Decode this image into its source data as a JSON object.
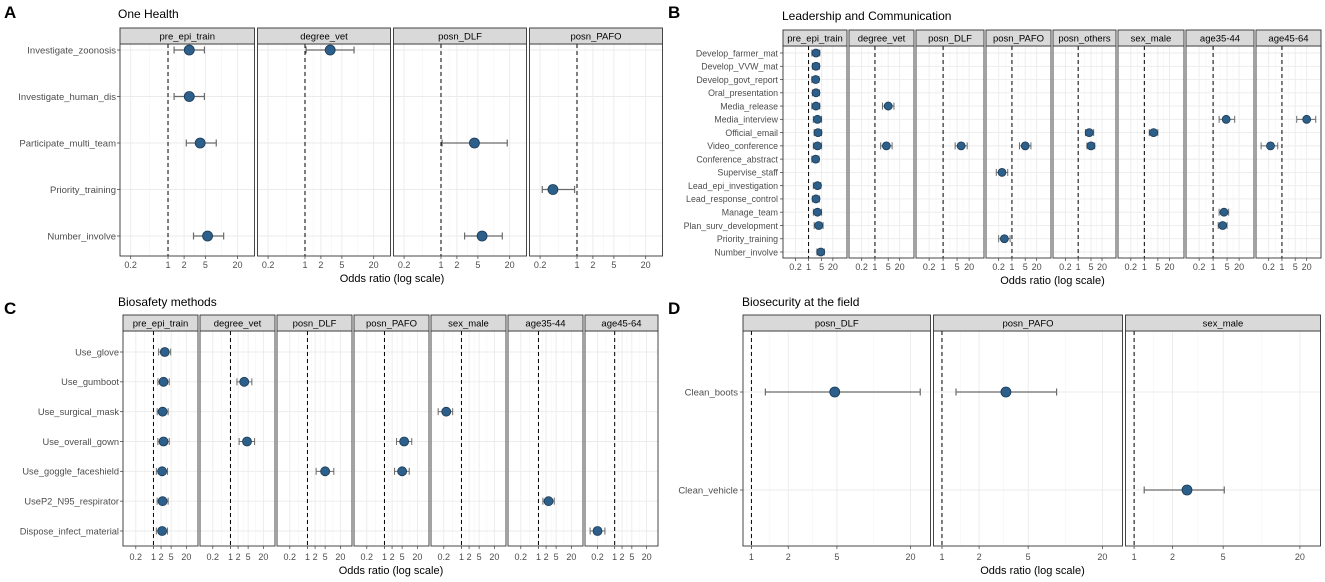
{
  "chart_data": [
    {
      "letter": "A",
      "title": "One Health",
      "type": "scatter",
      "xlabel": "Odds ratio (log scale)",
      "ylabel": "",
      "x_scale": "log",
      "xlim": [
        0.15,
        35
      ],
      "x_ticks": [
        0.2,
        1,
        2,
        5,
        20
      ],
      "x_tick_labels": [
        "0.2",
        "1",
        "2",
        "5",
        "20"
      ],
      "reference_line": 1,
      "facets": [
        "pre_epi_train",
        "degree_vet",
        "posn_DLF",
        "posn_PAFO"
      ],
      "categories": [
        "Investigate_zoonosis",
        "Investigate_human_dis",
        "Participate_multi_team",
        "Priority_training",
        "Number_involve"
      ],
      "points": [
        {
          "facet": "pre_epi_train",
          "category": "Investigate_zoonosis",
          "or": 2.5,
          "low": 1.3,
          "high": 4.8
        },
        {
          "facet": "pre_epi_train",
          "category": "Investigate_human_dis",
          "or": 2.5,
          "low": 1.3,
          "high": 4.8
        },
        {
          "facet": "pre_epi_train",
          "category": "Participate_multi_team",
          "or": 4.0,
          "low": 2.2,
          "high": 8.0
        },
        {
          "facet": "pre_epi_train",
          "category": "Number_involve",
          "or": 5.5,
          "low": 3.0,
          "high": 11.0
        },
        {
          "facet": "degree_vet",
          "category": "Investigate_zoonosis",
          "or": 3.0,
          "low": 1.05,
          "high": 8.5
        },
        {
          "facet": "posn_DLF",
          "category": "Participate_multi_team",
          "or": 4.3,
          "low": 1.05,
          "high": 18.0
        },
        {
          "facet": "posn_DLF",
          "category": "Number_involve",
          "or": 6.0,
          "low": 2.8,
          "high": 14.5
        },
        {
          "facet": "posn_PAFO",
          "category": "Priority_training",
          "or": 0.35,
          "low": 0.22,
          "high": 0.9
        }
      ]
    },
    {
      "letter": "B",
      "title": "Leadership and Communication",
      "type": "scatter",
      "xlabel": "Odds ratio (log scale)",
      "ylabel": "",
      "x_scale": "log",
      "xlim": [
        0.07,
        70
      ],
      "x_ticks": [
        0.2,
        1,
        5,
        20
      ],
      "x_tick_labels": [
        "0.2",
        "1",
        "5",
        "20"
      ],
      "reference_line": 1,
      "facets": [
        "pre_epi_train",
        "degree_vet",
        "posn_DLF",
        "posn_PAFO",
        "posn_others",
        "sex_male",
        "age35-44",
        "age45-64"
      ],
      "categories": [
        "Develop_farmer_mat",
        "Develop_VVW_mat",
        "Develop_govt_report",
        "Oral_presentation",
        "Media_release",
        "Media_interview",
        "Official_email",
        "Video_conference",
        "Conference_abstract",
        "Supervise_staff",
        "Lead_epi_investigation",
        "Lead_response_control",
        "Manage_team",
        "Plan_surv_development",
        "Priority_training",
        "Number_involve"
      ],
      "points": [
        {
          "facet": "pre_epi_train",
          "category": "Develop_farmer_mat",
          "or": 2.5,
          "low": 1.5,
          "high": 4.0
        },
        {
          "facet": "pre_epi_train",
          "category": "Develop_VVW_mat",
          "or": 2.5,
          "low": 1.6,
          "high": 3.8
        },
        {
          "facet": "pre_epi_train",
          "category": "Develop_govt_report",
          "or": 2.4,
          "low": 1.5,
          "high": 3.6
        },
        {
          "facet": "pre_epi_train",
          "category": "Oral_presentation",
          "or": 2.5,
          "low": 1.6,
          "high": 3.8
        },
        {
          "facet": "pre_epi_train",
          "category": "Media_release",
          "or": 2.5,
          "low": 1.5,
          "high": 4.0
        },
        {
          "facet": "pre_epi_train",
          "category": "Media_interview",
          "or": 3.0,
          "low": 1.8,
          "high": 5.0
        },
        {
          "facet": "pre_epi_train",
          "category": "Official_email",
          "or": 3.2,
          "low": 2.0,
          "high": 5.0
        },
        {
          "facet": "pre_epi_train",
          "category": "Video_conference",
          "or": 3.0,
          "low": 1.8,
          "high": 5.0
        },
        {
          "facet": "pre_epi_train",
          "category": "Conference_abstract",
          "or": 2.4,
          "low": 1.5,
          "high": 3.6
        },
        {
          "facet": "pre_epi_train",
          "category": "Lead_epi_investigation",
          "or": 3.0,
          "low": 1.8,
          "high": 4.5
        },
        {
          "facet": "pre_epi_train",
          "category": "Lead_response_control",
          "or": 2.5,
          "low": 1.6,
          "high": 3.8
        },
        {
          "facet": "pre_epi_train",
          "category": "Manage_team",
          "or": 3.0,
          "low": 1.8,
          "high": 5.0
        },
        {
          "facet": "pre_epi_train",
          "category": "Plan_surv_development",
          "or": 3.5,
          "low": 2.0,
          "high": 6.0
        },
        {
          "facet": "pre_epi_train",
          "category": "Number_involve",
          "or": 4.5,
          "low": 2.8,
          "high": 7.0
        },
        {
          "facet": "degree_vet",
          "category": "Media_release",
          "or": 5.0,
          "low": 2.5,
          "high": 10.0
        },
        {
          "facet": "degree_vet",
          "category": "Video_conference",
          "or": 4.0,
          "low": 2.0,
          "high": 8.0
        },
        {
          "facet": "posn_DLF",
          "category": "Video_conference",
          "or": 8.0,
          "low": 4.0,
          "high": 16.0
        },
        {
          "facet": "posn_PAFO",
          "category": "Video_conference",
          "or": 5.0,
          "low": 2.5,
          "high": 10.0
        },
        {
          "facet": "posn_PAFO",
          "category": "Supervise_staff",
          "or": 0.3,
          "low": 0.15,
          "high": 0.6
        },
        {
          "facet": "posn_PAFO",
          "category": "Priority_training",
          "or": 0.4,
          "low": 0.2,
          "high": 0.8
        },
        {
          "facet": "posn_others",
          "category": "Official_email",
          "or": 4.0,
          "low": 2.5,
          "high": 7.0
        },
        {
          "facet": "posn_others",
          "category": "Video_conference",
          "or": 5.0,
          "low": 3.0,
          "high": 8.0
        },
        {
          "facet": "sex_male",
          "category": "Official_email",
          "or": 3.0,
          "low": 1.8,
          "high": 5.0
        },
        {
          "facet": "age35-44",
          "category": "Media_interview",
          "or": 4.5,
          "low": 2.0,
          "high": 12.0
        },
        {
          "facet": "age35-44",
          "category": "Manage_team",
          "or": 3.5,
          "low": 2.0,
          "high": 6.0
        },
        {
          "facet": "age35-44",
          "category": "Plan_surv_development",
          "or": 3.0,
          "low": 1.8,
          "high": 5.0
        },
        {
          "facet": "age45-64",
          "category": "Media_interview",
          "or": 20.0,
          "low": 6.0,
          "high": 60.0
        },
        {
          "facet": "age45-64",
          "category": "Video_conference",
          "or": 0.25,
          "low": 0.08,
          "high": 0.6
        }
      ]
    },
    {
      "letter": "C",
      "title": "Biosafety methods",
      "type": "scatter",
      "xlabel": "Odds ratio (log scale)",
      "ylabel": "",
      "x_scale": "log",
      "xlim": [
        0.09,
        40
      ],
      "x_ticks": [
        0.2,
        1,
        2,
        5,
        20
      ],
      "x_tick_labels": [
        "0.2",
        "1",
        "2",
        "5",
        "20"
      ],
      "reference_line": 1,
      "facets": [
        "pre_epi_train",
        "degree_vet",
        "posn_DLF",
        "posn_PAFO",
        "sex_male",
        "age35-44",
        "age45-64"
      ],
      "categories": [
        "Use_glove",
        "Use_gumboot",
        "Use_surgical_mask",
        "Use_overall_gown",
        "Use_goggle_faceshield",
        "UseP2_N95_respirator",
        "Dispose_infect_material"
      ],
      "points": [
        {
          "facet": "pre_epi_train",
          "category": "Use_glove",
          "or": 2.8,
          "low": 1.6,
          "high": 4.8
        },
        {
          "facet": "pre_epi_train",
          "category": "Use_gumboot",
          "or": 2.5,
          "low": 1.5,
          "high": 4.2
        },
        {
          "facet": "pre_epi_train",
          "category": "Use_surgical_mask",
          "or": 2.3,
          "low": 1.4,
          "high": 3.8
        },
        {
          "facet": "pre_epi_train",
          "category": "Use_overall_gown",
          "or": 2.5,
          "low": 1.5,
          "high": 4.2
        },
        {
          "facet": "pre_epi_train",
          "category": "Use_goggle_faceshield",
          "or": 2.2,
          "low": 1.3,
          "high": 3.6
        },
        {
          "facet": "pre_epi_train",
          "category": "UseP2_N95_respirator",
          "or": 2.3,
          "low": 1.4,
          "high": 3.8
        },
        {
          "facet": "pre_epi_train",
          "category": "Dispose_infect_material",
          "or": 2.2,
          "low": 1.3,
          "high": 3.6
        },
        {
          "facet": "degree_vet",
          "category": "Use_gumboot",
          "or": 3.5,
          "low": 1.8,
          "high": 7.0
        },
        {
          "facet": "degree_vet",
          "category": "Use_overall_gown",
          "or": 4.5,
          "low": 2.2,
          "high": 9.0
        },
        {
          "facet": "posn_DLF",
          "category": "Use_goggle_faceshield",
          "or": 5.0,
          "low": 2.2,
          "high": 11.0
        },
        {
          "facet": "posn_PAFO",
          "category": "Use_overall_gown",
          "or": 6.0,
          "low": 3.0,
          "high": 12.0
        },
        {
          "facet": "posn_PAFO",
          "category": "Use_goggle_faceshield",
          "or": 5.0,
          "low": 2.5,
          "high": 9.5
        },
        {
          "facet": "sex_male",
          "category": "Use_surgical_mask",
          "or": 0.25,
          "low": 0.12,
          "high": 0.45
        },
        {
          "facet": "age35-44",
          "category": "UseP2_N95_respirator",
          "or": 2.5,
          "low": 1.5,
          "high": 4.2
        },
        {
          "facet": "age45-64",
          "category": "Dispose_infect_material",
          "or": 0.2,
          "low": 0.1,
          "high": 0.4
        }
      ]
    },
    {
      "letter": "D",
      "title": "Biosecurity at the field",
      "type": "scatter",
      "xlabel": "Odds ratio (log scale)",
      "ylabel": "",
      "x_scale": "log",
      "xlim": [
        0.92,
        27
      ],
      "x_ticks": [
        1,
        2,
        5,
        20
      ],
      "x_tick_labels": [
        "1",
        "2",
        "5",
        "20"
      ],
      "reference_line": 1,
      "facets": [
        "posn_DLF",
        "posn_PAFO",
        "sex_male"
      ],
      "categories": [
        "Clean_boots",
        "Clean_vehicle"
      ],
      "points": [
        {
          "facet": "posn_DLF",
          "category": "Clean_boots",
          "or": 4.8,
          "low": 1.3,
          "high": 24.0
        },
        {
          "facet": "posn_PAFO",
          "category": "Clean_boots",
          "or": 3.3,
          "low": 1.3,
          "high": 8.5
        },
        {
          "facet": "sex_male",
          "category": "Clean_vehicle",
          "or": 2.6,
          "low": 1.2,
          "high": 5.1
        }
      ]
    }
  ],
  "colors": {
    "point_fill": "#2c5f8a",
    "point_stroke": "#1a3a55",
    "errorbar": "#6b6b6b",
    "strip_bg": "#d9d9d9",
    "panel_border": "#333333",
    "grid_major": "#ebebeb",
    "grid_minor": "#f5f5f5",
    "refline": "#000000",
    "text": "#000000",
    "axis_text": "#4d4d4d"
  }
}
